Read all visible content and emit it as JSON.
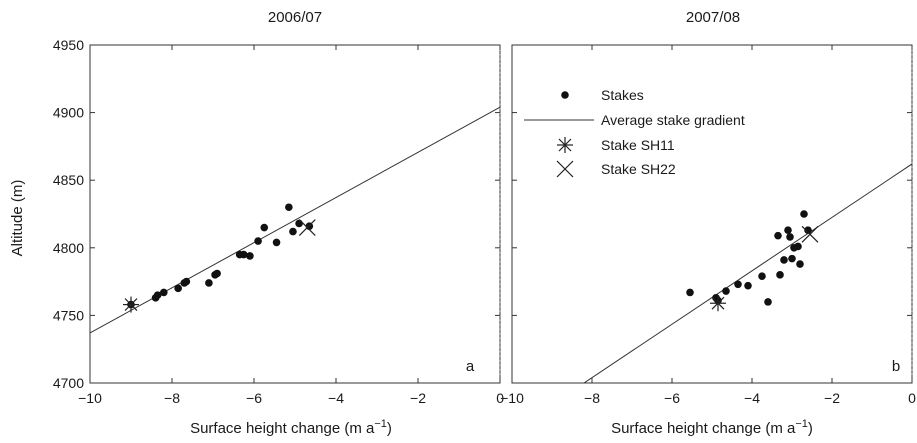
{
  "figure": {
    "ylabel": "Altitude (m)"
  },
  "chart_data": [
    {
      "type": "scatter",
      "title": "2006/07",
      "panel_label": "a",
      "xlabel": "Surface height change (m a",
      "xlabel_sup": "−1",
      "xlabel_close": ")",
      "ylabel": "Altitude (m)",
      "xlim": [
        -10,
        0
      ],
      "ylim": [
        4700,
        4950
      ],
      "xticks": [
        -10,
        -8,
        -6,
        -4,
        -2,
        0
      ],
      "xtick_labels": [
        "−10",
        "−8",
        "−6",
        "−4",
        "−2",
        "0"
      ],
      "yticks": [
        4700,
        4750,
        4800,
        4850,
        4900,
        4950
      ],
      "ytick_labels": [
        "4700",
        "4750",
        "4800",
        "4850",
        "4900",
        "4950"
      ],
      "reference_line_x": 0,
      "stakes": [
        {
          "x": -9.0,
          "y": 4758
        },
        {
          "x": -8.4,
          "y": 4763
        },
        {
          "x": -8.35,
          "y": 4765
        },
        {
          "x": -8.2,
          "y": 4767
        },
        {
          "x": -7.85,
          "y": 4770
        },
        {
          "x": -7.7,
          "y": 4774
        },
        {
          "x": -7.65,
          "y": 4775
        },
        {
          "x": -7.1,
          "y": 4774
        },
        {
          "x": -6.95,
          "y": 4780
        },
        {
          "x": -6.9,
          "y": 4781
        },
        {
          "x": -6.35,
          "y": 4795
        },
        {
          "x": -6.25,
          "y": 4795
        },
        {
          "x": -6.1,
          "y": 4794
        },
        {
          "x": -5.9,
          "y": 4805
        },
        {
          "x": -5.75,
          "y": 4815
        },
        {
          "x": -5.45,
          "y": 4804
        },
        {
          "x": -5.15,
          "y": 4830
        },
        {
          "x": -5.05,
          "y": 4812
        },
        {
          "x": -4.9,
          "y": 4818
        },
        {
          "x": -4.65,
          "y": 4816
        }
      ],
      "gradient_line": [
        {
          "x": -10,
          "y": 4737
        },
        {
          "x": 0,
          "y": 4904
        }
      ],
      "stake_sh11": {
        "x": -9.0,
        "y": 4758
      },
      "stake_sh22": {
        "x": -4.7,
        "y": 4815
      }
    },
    {
      "type": "scatter",
      "title": "2007/08",
      "panel_label": "b",
      "xlabel": "Surface height change (m a",
      "xlabel_sup": "−1",
      "xlabel_close": ")",
      "xlim": [
        -10,
        0
      ],
      "ylim": [
        4700,
        4950
      ],
      "xticks": [
        -10,
        -8,
        -6,
        -4,
        -2,
        0
      ],
      "xtick_labels": [
        "−10",
        "−8",
        "−6",
        "−4",
        "−2",
        "0"
      ],
      "yticks": [
        4700,
        4750,
        4800,
        4850,
        4900,
        4950
      ],
      "reference_line_x": 0,
      "legend": {
        "position": "top-left",
        "entries": [
          "Stakes",
          "Average stake gradient",
          "Stake SH11",
          "Stake SH22"
        ]
      },
      "stakes": [
        {
          "x": -5.55,
          "y": 4767
        },
        {
          "x": -4.9,
          "y": 4763
        },
        {
          "x": -4.85,
          "y": 4761
        },
        {
          "x": -4.65,
          "y": 4768
        },
        {
          "x": -4.35,
          "y": 4773
        },
        {
          "x": -4.1,
          "y": 4772
        },
        {
          "x": -3.75,
          "y": 4779
        },
        {
          "x": -3.6,
          "y": 4760
        },
        {
          "x": -3.35,
          "y": 4809
        },
        {
          "x": -3.3,
          "y": 4780
        },
        {
          "x": -3.2,
          "y": 4791
        },
        {
          "x": -3.1,
          "y": 4813
        },
        {
          "x": -3.05,
          "y": 4808
        },
        {
          "x": -3.0,
          "y": 4792
        },
        {
          "x": -2.95,
          "y": 4800
        },
        {
          "x": -2.85,
          "y": 4801
        },
        {
          "x": -2.8,
          "y": 4788
        },
        {
          "x": -2.7,
          "y": 4825
        },
        {
          "x": -2.6,
          "y": 4813
        }
      ],
      "gradient_line": [
        {
          "x": -8.2,
          "y": 4700
        },
        {
          "x": 0,
          "y": 4862
        }
      ],
      "stake_sh11": {
        "x": -4.85,
        "y": 4759
      },
      "stake_sh22": {
        "x": -2.55,
        "y": 4810
      }
    }
  ]
}
